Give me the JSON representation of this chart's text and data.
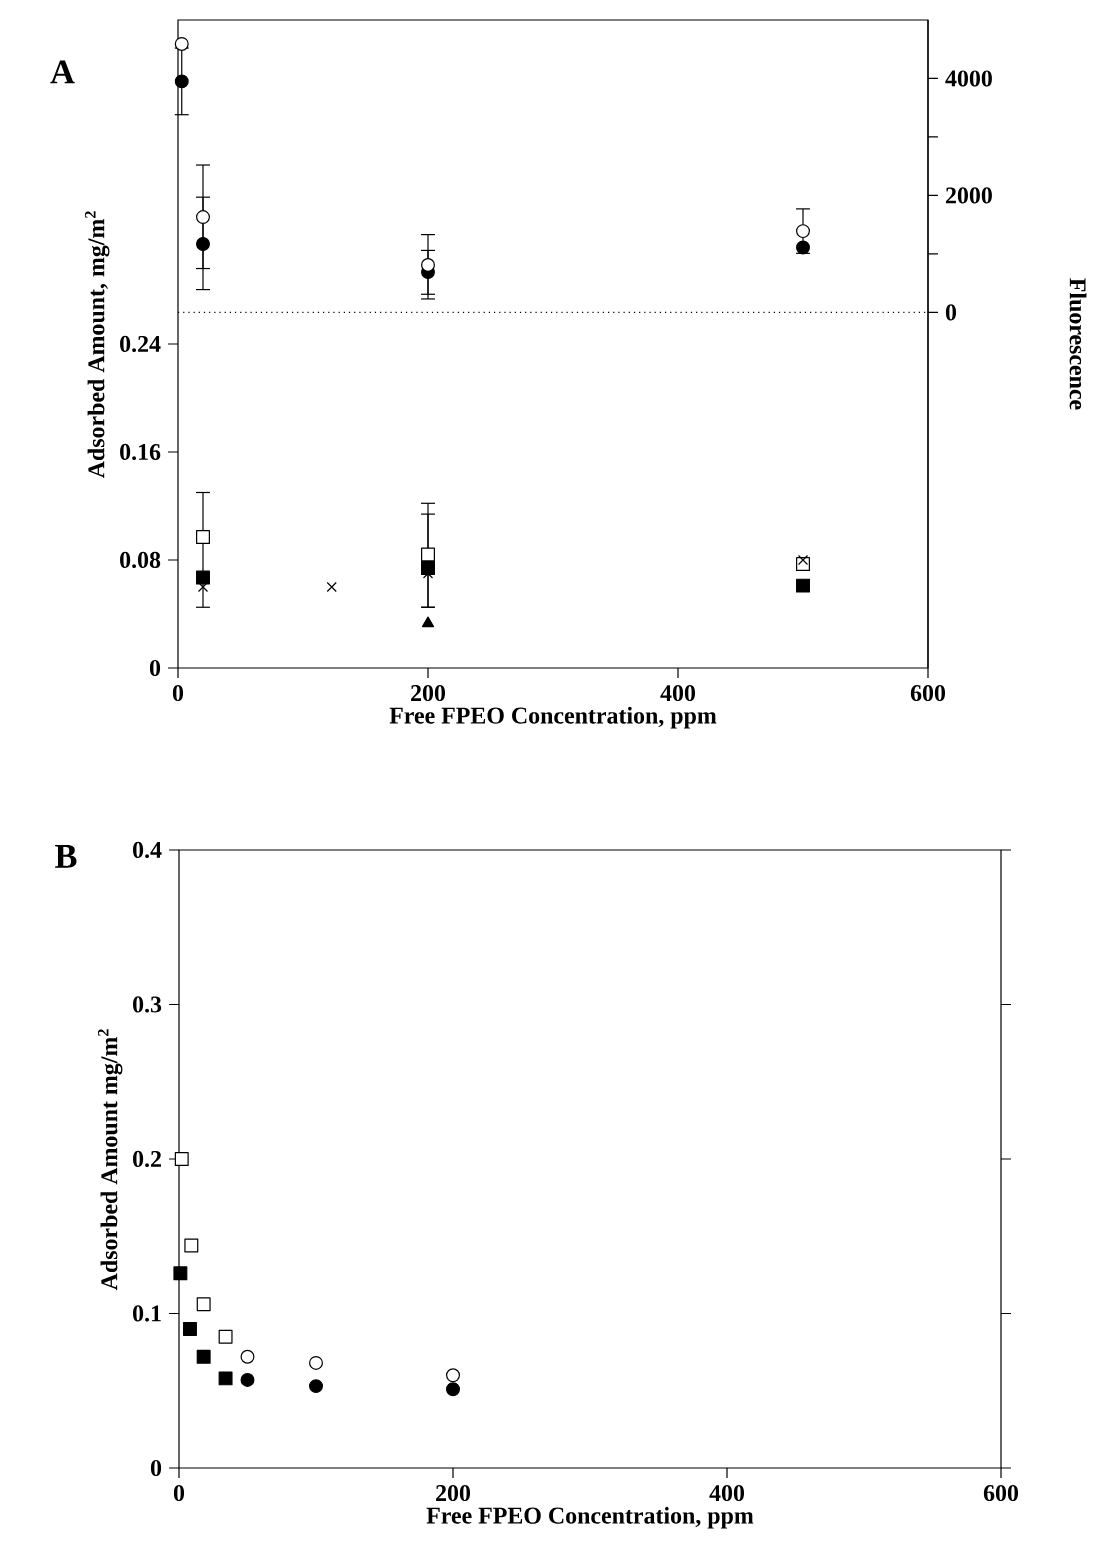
{
  "chart_data": [
    {
      "type": "scatter",
      "title": "A",
      "xlabel": "Free FPEO Concentration, ppm",
      "ylabel": "Adsorbed Amount, mg/m$^{2}$",
      "y2label": "Fluorescence",
      "xlim": [
        0,
        600
      ],
      "xticks": [
        0,
        200,
        400,
        600
      ],
      "ylim": [
        0,
        0.48
      ],
      "yticks": [
        0,
        0.08,
        0.16,
        0.24
      ],
      "y2lim": [
        -6080,
        5000
      ],
      "y2ticks": [
        0,
        {
          "value": 1000,
          "label": null
        },
        2000,
        {
          "value": 3000,
          "label": null
        },
        4000
      ],
      "ref_lines": [
        {
          "axis": "y2",
          "value": 0,
          "line_style": "dotted"
        }
      ],
      "series": [
        {
          "axis": "y2",
          "marker": "circle",
          "color": "#000000",
          "x": [
            3,
            20,
            200,
            500
          ],
          "values": [
            3950,
            1170,
            690,
            1110
          ],
          "errors": [
            [
              3380,
              4520
            ],
            [
              750,
              1970
            ],
            [
              310,
              1060
            ],
            null
          ]
        },
        {
          "axis": "y2",
          "marker": "circle",
          "color": "#ffffff",
          "x": [
            3,
            20,
            200,
            500
          ],
          "values": [
            4590,
            1630,
            810,
            1390
          ],
          "errors": [
            null,
            [
              390,
              2520
            ],
            [
              230,
              1330
            ],
            380
          ]
        },
        {
          "marker": "square",
          "color": "#ffffff",
          "x": [
            20,
            200,
            500
          ],
          "values": [
            0.097,
            0.084,
            0.077
          ],
          "errors": [
            [
              0.045,
              0.13
            ],
            [
              0.045,
              0.122
            ],
            null
          ]
        },
        {
          "marker": "square",
          "color": "#000000",
          "x": [
            20,
            200,
            500
          ],
          "values": [
            0.067,
            0.074,
            0.061
          ]
        },
        {
          "marker": "cross",
          "color": "#000000",
          "x": [
            20,
            123,
            200,
            500
          ],
          "values": [
            0.06,
            0.06,
            0.07,
            0.08
          ],
          "errors": [
            null,
            null,
            [
              0.045,
              0.114
            ],
            null
          ]
        },
        {
          "marker": "triangle",
          "color": "#000000",
          "x": [
            200
          ],
          "values": [
            0.033
          ]
        }
      ]
    },
    {
      "type": "scatter",
      "title": "B",
      "xlabel": "Free FPEO Concentration, ppm",
      "ylabel": "Adsorbed Amount mg/m$^{2}$",
      "xlim": [
        0,
        600
      ],
      "xticks": [
        0,
        200,
        400,
        600
      ],
      "ylim": [
        0,
        0.4
      ],
      "yticks": [
        0,
        0.1,
        0.2,
        0.3,
        0.4
      ],
      "series": [
        {
          "marker": "square",
          "color": "#ffffff",
          "x": [
            2,
            9,
            18,
            34
          ],
          "values": [
            0.2,
            0.144,
            0.106,
            0.085
          ]
        },
        {
          "marker": "square",
          "color": "#000000",
          "x": [
            1,
            8,
            18,
            34
          ],
          "values": [
            0.126,
            0.09,
            0.072,
            0.058
          ]
        },
        {
          "marker": "circle",
          "color": "#ffffff",
          "x": [
            50,
            100,
            200
          ],
          "values": [
            0.072,
            0.068,
            0.06
          ]
        },
        {
          "marker": "circle",
          "color": "#000000",
          "x": [
            50,
            100,
            200
          ],
          "values": [
            0.057,
            0.053,
            0.051
          ]
        }
      ]
    }
  ]
}
